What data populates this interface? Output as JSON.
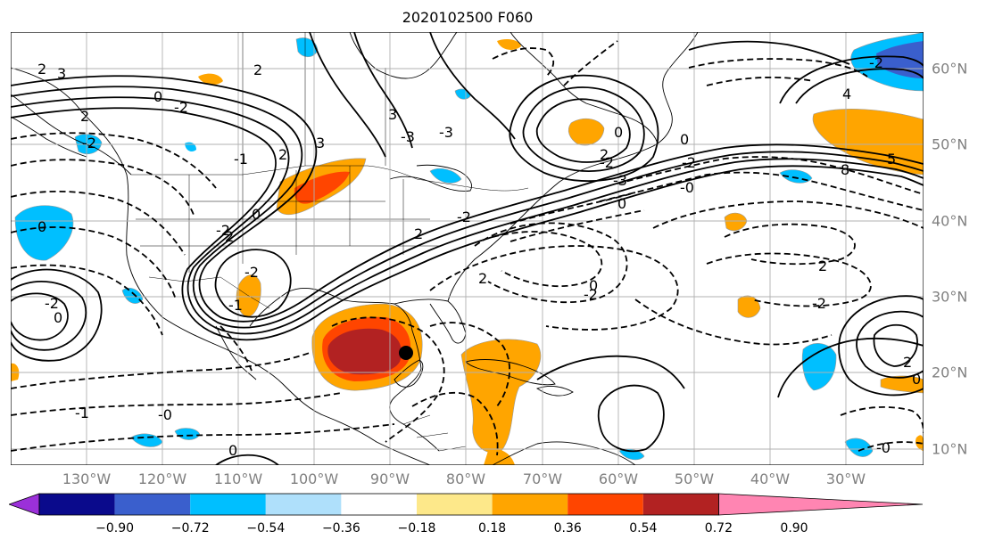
{
  "title": "2020102500 F060",
  "lon_labels": [
    "130°W",
    "120°W",
    "110°W",
    "100°W",
    "90°W",
    "80°W",
    "70°W",
    "60°W",
    "50°W",
    "40°W",
    "30°W"
  ],
  "lat_labels": [
    "60°N",
    "50°N",
    "40°N",
    "30°N",
    "20°N",
    "10°N"
  ],
  "colorbar": {
    "ticks": [
      "−0.90",
      "−0.72",
      "−0.54",
      "−0.36",
      "−0.18",
      "0.18",
      "0.36",
      "0.54",
      "0.72",
      "0.90"
    ],
    "colors": [
      "#9b30d9",
      "#0a0a8c",
      "#3a5fcd",
      "#00bfff",
      "#afe0fb",
      "#ffffff",
      "#fde88a",
      "#ffa500",
      "#ff4500",
      "#b22222",
      "#ff85b2"
    ]
  },
  "contour_labels": [
    "2",
    "3",
    "0",
    "-2",
    "2",
    "3",
    "-1",
    "2",
    "3",
    "-3",
    "-3",
    "-2",
    "2",
    "0",
    "-2",
    "0",
    "2",
    "-2",
    "0",
    "-2",
    "-1",
    "2",
    "-2",
    "2",
    "0",
    "-2",
    "2",
    "-2",
    "-2",
    "5",
    "4",
    "8",
    "0",
    "-2",
    "0",
    "2",
    "-3",
    "0",
    "-0",
    "-2",
    "-1",
    "-0",
    "0",
    "-0",
    "2",
    "0"
  ],
  "storm_marker": "black-dot"
}
